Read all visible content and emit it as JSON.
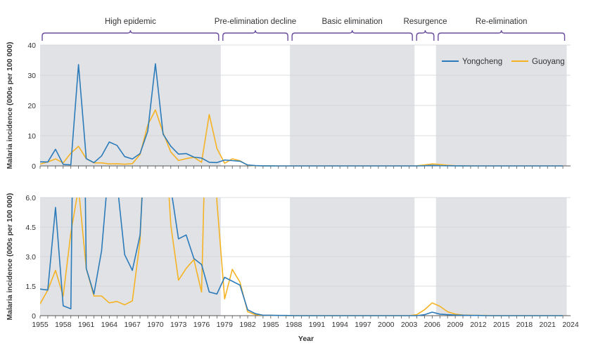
{
  "chart_data": {
    "type": "line",
    "colors": {
      "Yongcheng": "#2b7bba",
      "Guoyang": "#f5b324",
      "shade": "#e1e2e6",
      "grid": "#ffffff",
      "bracket": "#6a4d9c",
      "axis": "#555555"
    },
    "phases": [
      {
        "label": "High epidemic",
        "start": 1955,
        "end": 1978.5,
        "shaded": true
      },
      {
        "label": "Pre-elimination decline",
        "start": 1978.5,
        "end": 1987.5,
        "shaded": false
      },
      {
        "label": "Basic elimination",
        "start": 1987.5,
        "end": 2003.7,
        "shaded": true
      },
      {
        "label": "Resurgence",
        "start": 2003.7,
        "end": 2006.5,
        "shaded": false
      },
      {
        "label": "Re-elimination",
        "start": 2006.5,
        "end": 2023.5,
        "shaded": true
      }
    ],
    "xlabel": "Year",
    "xlim": [
      1955,
      2024
    ],
    "xticks": [
      "1955",
      "1958",
      "1961",
      "1964",
      "1967",
      "1970",
      "1973",
      "1976",
      "1979",
      "1982",
      "1985",
      "1988",
      "1991",
      "1994",
      "1997",
      "2000",
      "2003",
      "2006",
      "2009",
      "2012",
      "2015",
      "2018",
      "2021",
      "2024"
    ],
    "series": [
      {
        "name": "Yongcheng",
        "x": [
          1955,
          1956,
          1957,
          1958,
          1959,
          1960,
          1961,
          1962,
          1963,
          1964,
          1965,
          1966,
          1967,
          1968,
          1969,
          1970,
          1971,
          1972,
          1973,
          1974,
          1975,
          1976,
          1977,
          1978,
          1979,
          1980,
          1981,
          1982,
          1983,
          1984,
          1985,
          1986,
          1987,
          1988,
          1989,
          1990,
          1991,
          1992,
          1993,
          1994,
          1995,
          1996,
          1997,
          1998,
          1999,
          2000,
          2001,
          2002,
          2003,
          2004,
          2005,
          2006,
          2007,
          2008,
          2009,
          2010,
          2011,
          2012,
          2013,
          2014,
          2015,
          2016,
          2017,
          2018,
          2019,
          2020,
          2021,
          2022,
          2023
        ],
        "y": [
          1.35,
          1.3,
          5.5,
          0.5,
          0.35,
          33.5,
          2.4,
          1.1,
          3.3,
          7.9,
          6.8,
          3.1,
          2.3,
          4.1,
          11.5,
          33.8,
          10.5,
          6.5,
          3.9,
          4.1,
          2.9,
          2.6,
          1.2,
          1.1,
          1.95,
          1.75,
          1.55,
          0.3,
          0.1,
          0.02,
          0.02,
          0.01,
          0.01,
          0,
          0,
          0,
          0,
          0,
          0,
          0,
          0,
          0,
          0,
          0,
          0,
          0,
          0,
          0,
          0,
          0,
          0.05,
          0.18,
          0.08,
          0.05,
          0.03,
          0.02,
          0.01,
          0.01,
          0,
          0,
          0,
          0,
          0,
          0,
          0,
          0,
          0,
          0,
          0
        ]
      },
      {
        "name": "Guoyang",
        "x": [
          1955,
          1956,
          1957,
          1958,
          1959,
          1960,
          1961,
          1962,
          1963,
          1964,
          1965,
          1966,
          1967,
          1968,
          1969,
          1970,
          1971,
          1972,
          1973,
          1974,
          1975,
          1976,
          1977,
          1978,
          1979,
          1980,
          1981,
          1982,
          1983,
          1984,
          1985,
          1986,
          1987,
          1988,
          1989,
          1990,
          1991,
          1992,
          1993,
          1994,
          1995,
          1996,
          1997,
          1998,
          1999,
          2000,
          2001,
          2002,
          2003,
          2004,
          2005,
          2006,
          2007,
          2008,
          2009,
          2010,
          2011,
          2012,
          2013,
          2014,
          2015,
          2016,
          2017,
          2018,
          2019,
          2020,
          2021,
          2022,
          2023
        ],
        "y": [
          0.6,
          1.3,
          2.3,
          1.0,
          4.2,
          6.5,
          2.4,
          1.0,
          1.0,
          0.65,
          0.72,
          0.55,
          0.75,
          3.8,
          13.5,
          18.5,
          11.0,
          4.6,
          1.8,
          2.4,
          2.85,
          1.2,
          17.0,
          5.8,
          0.85,
          2.35,
          1.7,
          0.2,
          0.05,
          0.02,
          0.01,
          0.01,
          0,
          0,
          0,
          0,
          0,
          0,
          0,
          0,
          0,
          0,
          0,
          0,
          0,
          0,
          0,
          0,
          0,
          0.05,
          0.3,
          0.65,
          0.48,
          0.2,
          0.08,
          0.03,
          0.02,
          0.01,
          0.01,
          0,
          0,
          0,
          0,
          0,
          0,
          0,
          0,
          0,
          0
        ]
      }
    ],
    "panels": [
      {
        "ylabel": "Malaria incidence (000s per 100 000)",
        "ylim": [
          0,
          40
        ],
        "yticks": [
          "0",
          "10",
          "20",
          "30",
          "40"
        ],
        "legend": "top-right"
      },
      {
        "ylabel": "Malaria incidence (000s per 100 000)",
        "ylim": [
          0,
          6
        ],
        "yticks": [
          "0",
          "1.5",
          "3.0",
          "4.5",
          "6.0"
        ]
      }
    ]
  }
}
